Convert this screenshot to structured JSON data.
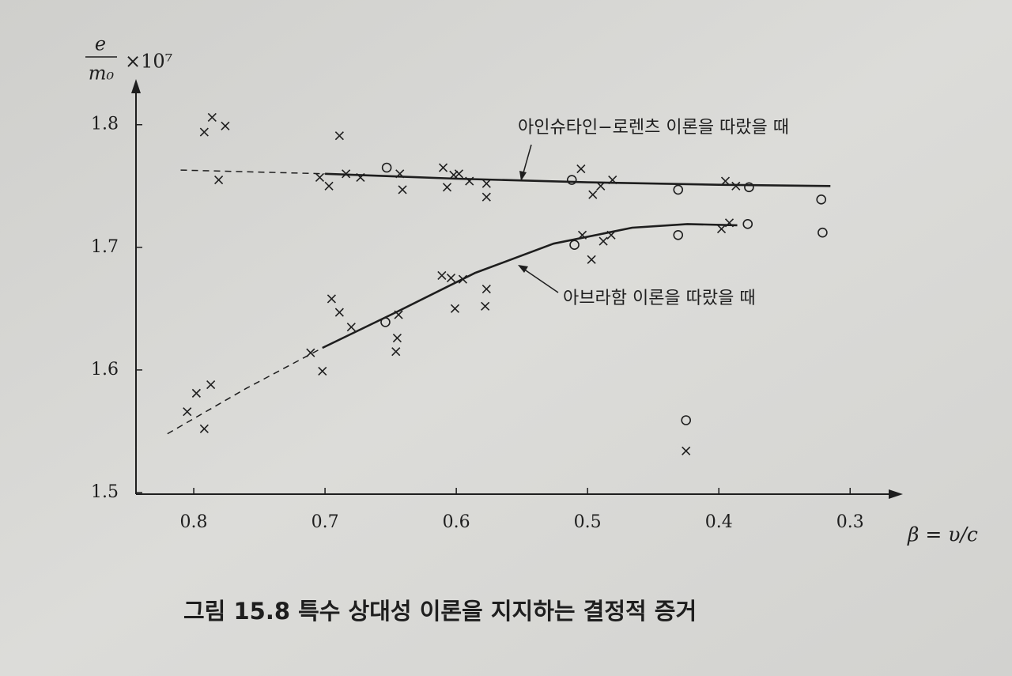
{
  "chart_data": {
    "type": "scatter",
    "y_label_numerator": "e",
    "y_label_denominator": "m₀",
    "y_label_factor": "×10⁷",
    "x_label": "β = υ/c",
    "caption": "그림 15.8  특수 상대성 이론을 지지하는 결정적 증거",
    "annotations": [
      "아인슈타인−로렌츠 이론을 따랐을 때",
      "아브라함 이론을 따랐을 때"
    ],
    "xlim": [
      0.844,
      0.261
    ],
    "ylim": [
      1.5,
      1.834
    ],
    "xticks": [
      0.8,
      0.7,
      0.6,
      0.5,
      0.4,
      0.3
    ],
    "yticks": [
      1.5,
      1.6,
      1.7,
      1.8
    ],
    "color": "#1e1e1e",
    "series": [
      {
        "mark": "cross",
        "x": [
          0.792,
          0.786,
          0.776,
          0.781,
          0.805,
          0.798,
          0.787,
          0.792,
          0.689,
          0.704,
          0.697,
          0.684,
          0.673,
          0.643,
          0.641,
          0.61,
          0.607,
          0.602,
          0.598,
          0.59,
          0.577,
          0.577,
          0.505,
          0.496,
          0.49,
          0.481,
          0.395,
          0.387,
          0.711,
          0.702,
          0.695,
          0.689,
          0.68,
          0.645,
          0.646,
          0.644,
          0.611,
          0.604,
          0.595,
          0.601,
          0.577,
          0.578,
          0.504,
          0.497,
          0.488,
          0.482,
          0.398,
          0.392,
          0.425
        ],
        "values": [
          1.794,
          1.806,
          1.799,
          1.755,
          1.566,
          1.581,
          1.588,
          1.552,
          1.791,
          1.757,
          1.75,
          1.76,
          1.757,
          1.76,
          1.747,
          1.765,
          1.749,
          1.759,
          1.76,
          1.754,
          1.752,
          1.741,
          1.764,
          1.743,
          1.75,
          1.755,
          1.754,
          1.75,
          1.614,
          1.599,
          1.658,
          1.647,
          1.635,
          1.626,
          1.615,
          1.645,
          1.677,
          1.675,
          1.674,
          1.65,
          1.666,
          1.652,
          1.71,
          1.69,
          1.705,
          1.71,
          1.715,
          1.72,
          1.534
        ]
      },
      {
        "mark": "circle",
        "x": [
          0.653,
          0.512,
          0.431,
          0.377,
          0.322,
          0.654,
          0.51,
          0.431,
          0.378,
          0.321,
          0.425
        ],
        "values": [
          1.765,
          1.755,
          1.747,
          1.749,
          1.739,
          1.639,
          1.702,
          1.71,
          1.719,
          1.712,
          1.559
        ]
      },
      {
        "mark": "line",
        "dashed": true,
        "x": [
          0.81,
          0.7
        ],
        "values": [
          1.763,
          1.76
        ]
      },
      {
        "mark": "line",
        "dashed": false,
        "x": [
          0.7,
          0.6,
          0.5,
          0.4,
          0.315
        ],
        "values": [
          1.76,
          1.756,
          1.753,
          1.751,
          1.75
        ]
      },
      {
        "mark": "line",
        "dashed": true,
        "x": [
          0.82,
          0.76,
          0.702
        ],
        "values": [
          1.548,
          1.585,
          1.618
        ]
      },
      {
        "mark": "line",
        "dashed": false,
        "x": [
          0.702,
          0.646,
          0.586,
          0.526,
          0.466,
          0.424,
          0.386
        ],
        "values": [
          1.618,
          1.647,
          1.679,
          1.703,
          1.716,
          1.719,
          1.718
        ]
      }
    ]
  }
}
